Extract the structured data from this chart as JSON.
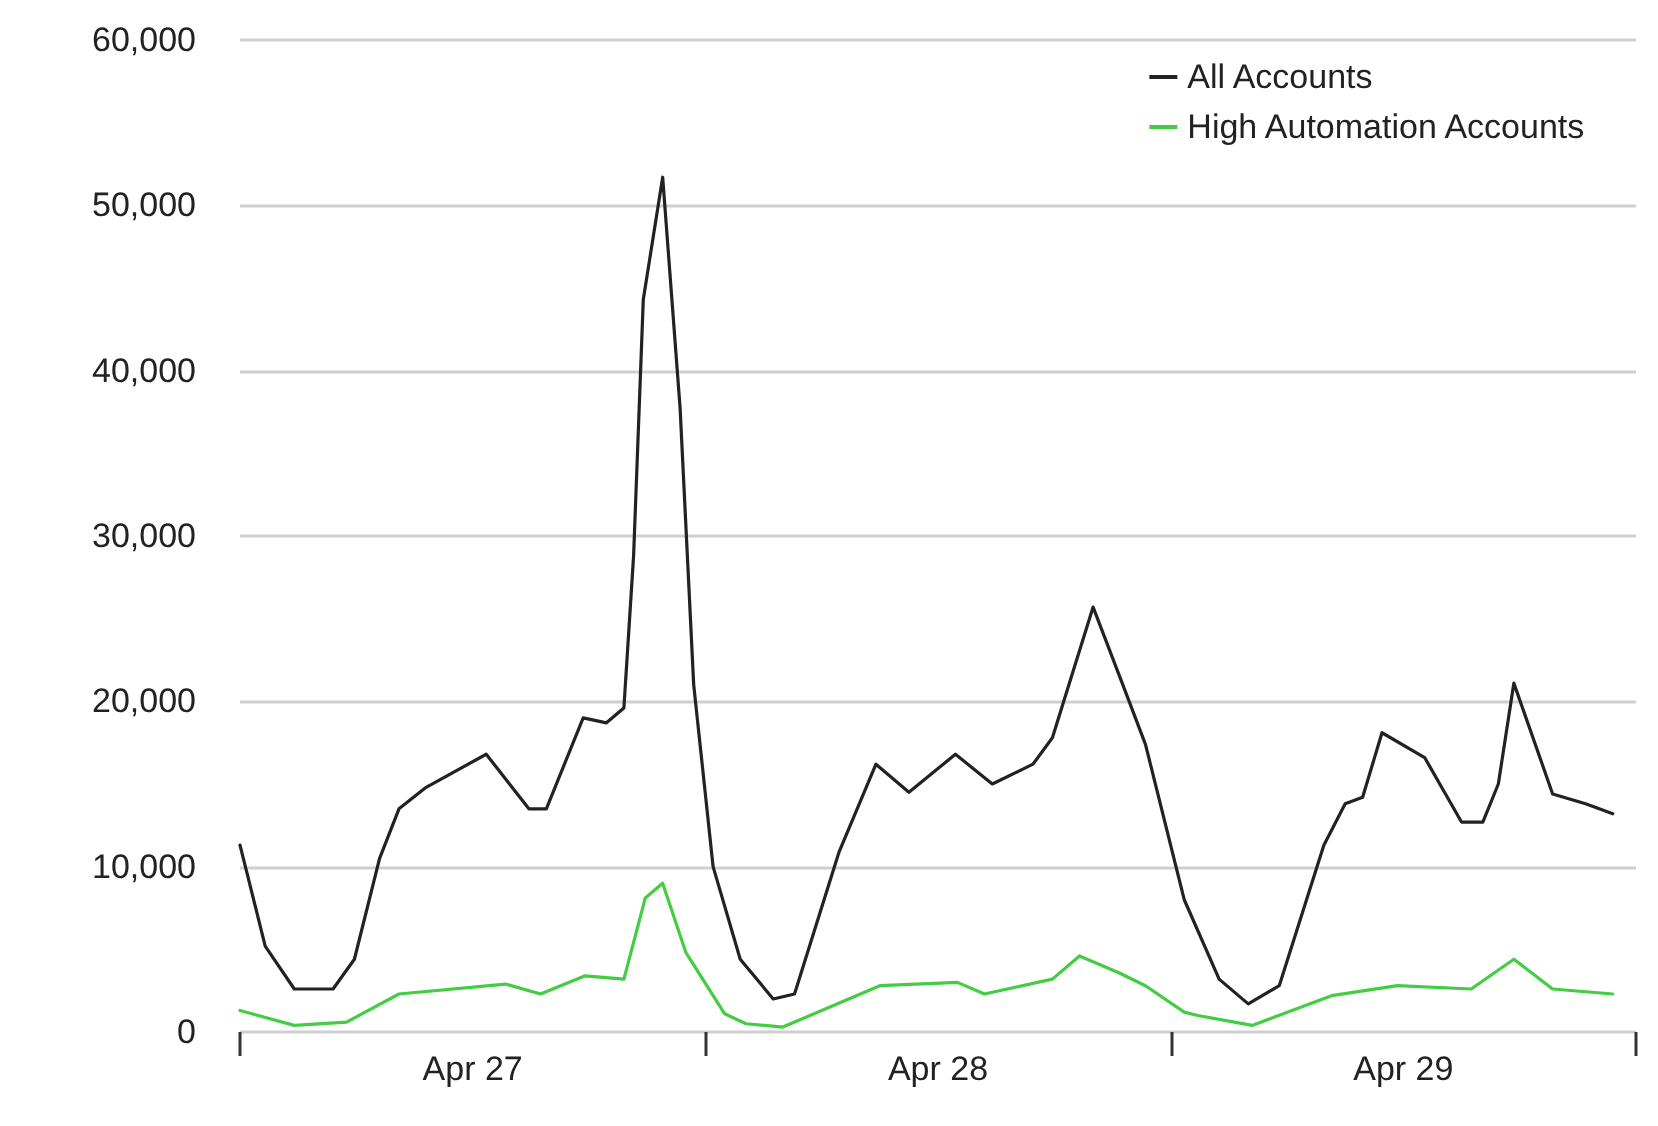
{
  "chart_data": {
    "type": "line",
    "x": [
      "--04-27T00:00",
      "--04-27T01:18",
      "--04-27T02:48",
      "--04-27T04:48",
      "--04-27T05:54",
      "--04-27T07:12",
      "--04-27T08:12",
      "--04-27T09:36",
      "--04-27T12:42",
      "--04-27T14:54",
      "--04-27T15:48",
      "--04-27T17:42",
      "--04-27T18:54",
      "--04-27T19:48",
      "--04-27T20:18",
      "--04-27T20:48",
      "--04-27T21:48",
      "--04-27T22:42",
      "--04-27T23:24",
      "--04-28T00:24",
      "--04-28T01:48",
      "--04-28T03:30",
      "--04-28T04:36",
      "--04-28T06:54",
      "--04-28T08:48",
      "--04-28T10:30",
      "--04-28T12:54",
      "--04-28T14:48",
      "--04-28T16:54",
      "--04-28T17:54",
      "--04-28T20:00",
      "--04-28T21:30",
      "--04-28T22:42",
      "--04-29T00:42",
      "--04-29T02:30",
      "--04-29T04:00",
      "--04-29T05:36",
      "--04-29T07:54",
      "--04-29T09:00",
      "--04-29T09:54",
      "--04-29T10:54",
      "--04-29T13:06",
      "--04-29T15:00",
      "--04-29T16:06",
      "--04-29T16:54",
      "--04-29T17:42",
      "--04-29T19:42",
      "--04-29T21:24",
      "--04-29T22:48"
    ],
    "series": [
      {
        "name": "All Accounts",
        "color": "#222222",
        "values": [
          11300,
          5200,
          2600,
          2600,
          4400,
          10500,
          13500,
          14800,
          16800,
          13500,
          13500,
          19000,
          18700,
          19600,
          28800,
          44300,
          51700,
          37700,
          21000,
          10000,
          4400,
          2000,
          2300,
          10900,
          16200,
          14500,
          16800,
          15000,
          16200,
          17800,
          25700,
          21100,
          17400,
          8000,
          3200,
          1700,
          2800,
          11300,
          13800,
          14200,
          18100,
          16600,
          12700,
          12700,
          15000,
          21100,
          14400,
          13800,
          13200
        ]
      },
      {
        "name": "High Automation Accounts",
        "color": "#44cc44",
        "x": [
          "--04-27T00:00",
          "--04-27T02:48",
          "--04-27T05:30",
          "--04-27T08:12",
          "--04-27T13:42",
          "--04-27T15:30",
          "--04-27T17:48",
          "--04-27T19:48",
          "--04-27T20:54",
          "--04-27T21:48",
          "--04-27T23:00",
          "--04-28T01:00",
          "--04-28T02:06",
          "--04-28T04:00",
          "--04-28T09:00",
          "--04-28T13:00",
          "--04-28T14:24",
          "--04-28T17:54",
          "--04-28T19:18",
          "--04-28T21:18",
          "--04-28T22:42",
          "--04-29T00:42",
          "--04-29T01:24",
          "--04-29T04:12",
          "--04-29T08:18",
          "--04-29T11:42",
          "--04-29T15:30",
          "--04-29T17:42",
          "--04-29T19:42",
          "--04-29T22:48"
        ],
        "values": [
          1300,
          400,
          600,
          2300,
          2900,
          2300,
          3400,
          3200,
          8100,
          9000,
          4800,
          1100,
          500,
          300,
          2800,
          3000,
          2300,
          3200,
          4600,
          3600,
          2800,
          1200,
          1000,
          400,
          2200,
          2800,
          2600,
          4400,
          2600,
          2300
        ]
      }
    ],
    "xlim": [
      "--04-27T00:00",
      "--04-30T00:00"
    ],
    "xticks": [
      {
        "value": "--04-27T00:00",
        "label": null
      },
      {
        "value": "--04-27T12:00",
        "label": "Apr 27"
      },
      {
        "value": "--04-28T00:00",
        "label": null
      },
      {
        "value": "--04-28T12:00",
        "label": "Apr 28"
      },
      {
        "value": "--04-29T00:00",
        "label": null
      },
      {
        "value": "--04-29T12:00",
        "label": "Apr 29"
      },
      {
        "value": "--04-30T00:00",
        "label": null
      }
    ],
    "ylim": [
      0,
      60000
    ],
    "yticks": [
      0,
      {
        "value": 10000,
        "label": "10,000"
      },
      {
        "value": 20000,
        "label": "20,000"
      },
      {
        "value": 30000,
        "label": "30,000"
      },
      {
        "value": 40000,
        "label": "40,000"
      },
      {
        "value": 50000,
        "label": "50,000"
      },
      {
        "value": 60000,
        "label": "60,000"
      }
    ],
    "grid": "y",
    "legend": "top right",
    "marker": "none",
    "line_style": "solid"
  }
}
